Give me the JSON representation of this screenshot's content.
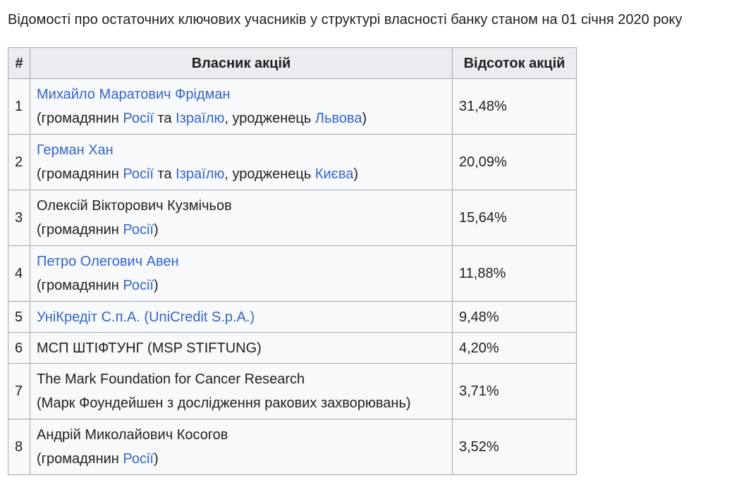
{
  "caption": "Відомості про остаточних ключових учасників у структурі власності банку станом на 01 січня 2020 року",
  "table": {
    "headers": {
      "num": "#",
      "owner": "Власник акцій",
      "percent": "Відсоток акцій"
    },
    "rows": [
      {
        "num": "1",
        "name": "Михайло Маратович Фрідман",
        "name_is_link": true,
        "note": {
          "open": "(громадянин ",
          "link1": "Росії",
          "mid1": " та ",
          "link2": "Ізраїлю",
          "mid2": ", уродженець ",
          "link3": "Львова",
          "close": ")"
        },
        "percent": "31,48%"
      },
      {
        "num": "2",
        "name": "Герман Хан",
        "name_is_link": true,
        "note": {
          "open": "(громадянин ",
          "link1": "Росії",
          "mid1": " та ",
          "link2": "Ізраїлю",
          "mid2": ", уродженець ",
          "link3": "Києва",
          "close": ")"
        },
        "percent": "20,09%"
      },
      {
        "num": "3",
        "name": "Олексій Вікторович Кузмічьов",
        "name_is_link": false,
        "note": {
          "open": "(громадянин ",
          "link1": "Росії",
          "close": ")"
        },
        "percent": "15,64%"
      },
      {
        "num": "4",
        "name": "Петро Олегович Авен",
        "name_is_link": true,
        "note": {
          "open": "(громадянин ",
          "link1": "Росії",
          "close": ")"
        },
        "percent": "11,88%"
      },
      {
        "num": "5",
        "name": "УніКредіт С.п.А. (UniCredit S.p.A.)",
        "name_is_link": true,
        "percent": "9,48%"
      },
      {
        "num": "6",
        "name": "МСП ШТІФТУНГ (MSP STIFTUNG)",
        "name_is_link": false,
        "percent": "4,20%"
      },
      {
        "num": "7",
        "name": "The Mark Foundation for Cancer Research",
        "name_is_link": false,
        "note_text": "(Марк Фоундейшен з дослідження ракових захворювань)",
        "percent": "3,71%"
      },
      {
        "num": "8",
        "name": "Андрій Миколайович Косогов",
        "name_is_link": false,
        "note": {
          "open": "(громадянин ",
          "link1": "Росії",
          "close": ")"
        },
        "percent": "3,52%"
      }
    ]
  },
  "colors": {
    "link": "#3366cc",
    "text": "#202122",
    "cell_bg": "#f8f9fa",
    "header_bg": "#eaecf0",
    "border": "#a2a9b1"
  }
}
